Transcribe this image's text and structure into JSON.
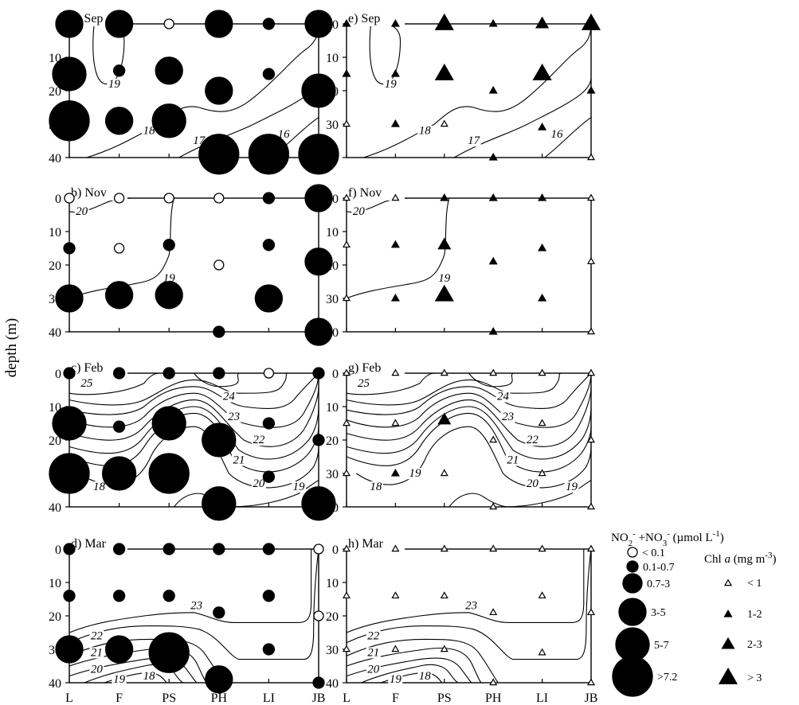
{
  "figure": {
    "ylabel": "depth (m)",
    "stations": [
      "L",
      "F",
      "PS",
      "PH",
      "LI",
      "JB"
    ],
    "depth_ticks": [
      "0",
      "10",
      "20",
      "30",
      "40"
    ]
  },
  "chart_data": {
    "type": "scatter",
    "x_categories": [
      "L",
      "F",
      "PS",
      "PH",
      "LI",
      "JB"
    ],
    "y_axis": {
      "label": "depth (m)",
      "ylim": [
        0,
        40
      ],
      "ticks": [
        0,
        10,
        20,
        30,
        40
      ],
      "inverted": true
    },
    "legend_nutrient": {
      "title": "NO2- +NO3- (µmol L-1)",
      "classes": [
        "< 0.1",
        "0.1-0.7",
        "0.7-3",
        "3-5",
        "5-7",
        ">7.2"
      ]
    },
    "legend_chla": {
      "title": "Chl a (mg m-3)",
      "classes": [
        "< 1",
        "1-2",
        "2-3",
        "> 3"
      ]
    },
    "panels": [
      {
        "id": "a",
        "title": "a) Sep",
        "variable": "nutrient",
        "points": [
          {
            "x": "L",
            "depth": 0,
            "class": 3
          },
          {
            "x": "F",
            "depth": 0,
            "class": 3
          },
          {
            "x": "PS",
            "depth": 0,
            "class": 0
          },
          {
            "x": "PH",
            "depth": 0,
            "class": 3
          },
          {
            "x": "LI",
            "depth": 0,
            "class": 1
          },
          {
            "x": "JB",
            "depth": 0,
            "class": 3
          },
          {
            "x": "L",
            "depth": 15,
            "class": 4
          },
          {
            "x": "F",
            "depth": 14,
            "class": 1
          },
          {
            "x": "PS",
            "depth": 14,
            "class": 3
          },
          {
            "x": "LI",
            "depth": 15,
            "class": 1
          },
          {
            "x": "PH",
            "depth": 20,
            "class": 3
          },
          {
            "x": "JB",
            "depth": 20,
            "class": 4
          },
          {
            "x": "L",
            "depth": 29,
            "class": 5
          },
          {
            "x": "F",
            "depth": 29,
            "class": 3
          },
          {
            "x": "PS",
            "depth": 29,
            "class": 4
          },
          {
            "x": "PH",
            "depth": 39,
            "class": 5
          },
          {
            "x": "LI",
            "depth": 39,
            "class": 5
          },
          {
            "x": "JB",
            "depth": 39,
            "class": 5
          }
        ],
        "contour_labels": [
          {
            "text": "19",
            "x": 0.9,
            "y": 19
          },
          {
            "text": "18",
            "x": 1.6,
            "y": 33
          },
          {
            "text": "17",
            "x": 2.6,
            "y": 36
          },
          {
            "text": "16",
            "x": 4.3,
            "y": 34
          }
        ]
      },
      {
        "id": "b",
        "title": "b) Nov",
        "variable": "nutrient",
        "points": [
          {
            "x": "L",
            "depth": 0,
            "class": 0
          },
          {
            "x": "F",
            "depth": 0,
            "class": 0
          },
          {
            "x": "PS",
            "depth": 0,
            "class": 0
          },
          {
            "x": "PH",
            "depth": 0,
            "class": 0
          },
          {
            "x": "LI",
            "depth": 0,
            "class": 1
          },
          {
            "x": "JB",
            "depth": 0,
            "class": 3
          },
          {
            "x": "L",
            "depth": 15,
            "class": 1
          },
          {
            "x": "F",
            "depth": 15,
            "class": 0
          },
          {
            "x": "PS",
            "depth": 14,
            "class": 1
          },
          {
            "x": "LI",
            "depth": 14,
            "class": 1
          },
          {
            "x": "PH",
            "depth": 20,
            "class": 0
          },
          {
            "x": "JB",
            "depth": 19,
            "class": 3
          },
          {
            "x": "L",
            "depth": 30,
            "class": 3
          },
          {
            "x": "F",
            "depth": 29,
            "class": 3
          },
          {
            "x": "PS",
            "depth": 29,
            "class": 3
          },
          {
            "x": "LI",
            "depth": 30,
            "class": 3
          },
          {
            "x": "PH",
            "depth": 40,
            "class": 1
          },
          {
            "x": "JB",
            "depth": 40,
            "class": 3
          }
        ],
        "contour_labels": [
          {
            "text": "20",
            "x": 0.25,
            "y": 5
          },
          {
            "text": "19",
            "x": 2.0,
            "y": 25
          }
        ]
      },
      {
        "id": "c",
        "title": "c) Feb",
        "variable": "nutrient",
        "points": [
          {
            "x": "L",
            "depth": 0,
            "class": 1
          },
          {
            "x": "F",
            "depth": 0,
            "class": 1
          },
          {
            "x": "PS",
            "depth": 0,
            "class": 1
          },
          {
            "x": "PH",
            "depth": 0,
            "class": 1
          },
          {
            "x": "LI",
            "depth": 0,
            "class": 0
          },
          {
            "x": "JB",
            "depth": 0,
            "class": 1
          },
          {
            "x": "L",
            "depth": 15,
            "class": 4
          },
          {
            "x": "F",
            "depth": 16,
            "class": 1
          },
          {
            "x": "PS",
            "depth": 15,
            "class": 4
          },
          {
            "x": "LI",
            "depth": 15,
            "class": 1
          },
          {
            "x": "PH",
            "depth": 20,
            "class": 4
          },
          {
            "x": "JB",
            "depth": 20,
            "class": 1
          },
          {
            "x": "L",
            "depth": 30,
            "class": 5
          },
          {
            "x": "F",
            "depth": 30,
            "class": 4
          },
          {
            "x": "PS",
            "depth": 30,
            "class": 5
          },
          {
            "x": "LI",
            "depth": 31,
            "class": 1
          },
          {
            "x": "PH",
            "depth": 39,
            "class": 4
          },
          {
            "x": "JB",
            "depth": 39,
            "class": 4
          }
        ],
        "contour_labels": [
          {
            "text": "25",
            "x": 0.35,
            "y": 4
          },
          {
            "text": "24",
            "x": 3.2,
            "y": 8
          },
          {
            "text": "23",
            "x": 3.3,
            "y": 14
          },
          {
            "text": "22",
            "x": 3.8,
            "y": 21
          },
          {
            "text": "21",
            "x": 3.4,
            "y": 27
          },
          {
            "text": "20",
            "x": 3.8,
            "y": 34
          },
          {
            "text": "19",
            "x": 4.6,
            "y": 35
          },
          {
            "text": "18",
            "x": 0.6,
            "y": 35
          },
          {
            "text": "30",
            "x": -0.15,
            "y": 30
          }
        ]
      },
      {
        "id": "d",
        "title": "d) Mar",
        "variable": "nutrient",
        "points": [
          {
            "x": "L",
            "depth": 0,
            "class": 1
          },
          {
            "x": "F",
            "depth": 0,
            "class": 1
          },
          {
            "x": "PS",
            "depth": 0,
            "class": 1
          },
          {
            "x": "PH",
            "depth": 0,
            "class": 1
          },
          {
            "x": "LI",
            "depth": 0,
            "class": 1
          },
          {
            "x": "JB",
            "depth": 0,
            "class": 0
          },
          {
            "x": "L",
            "depth": 14,
            "class": 1
          },
          {
            "x": "F",
            "depth": 14,
            "class": 1
          },
          {
            "x": "PS",
            "depth": 14,
            "class": 1
          },
          {
            "x": "LI",
            "depth": 14,
            "class": 1
          },
          {
            "x": "PH",
            "depth": 19,
            "class": 1
          },
          {
            "x": "JB",
            "depth": 20,
            "class": 0
          },
          {
            "x": "L",
            "depth": 30,
            "class": 3
          },
          {
            "x": "F",
            "depth": 30,
            "class": 3
          },
          {
            "x": "PS",
            "depth": 31,
            "class": 5
          },
          {
            "x": "LI",
            "depth": 30,
            "class": 1
          },
          {
            "x": "PH",
            "depth": 39,
            "class": 3
          },
          {
            "x": "JB",
            "depth": 40,
            "class": 1
          }
        ],
        "contour_labels": [
          {
            "text": "23",
            "x": 2.55,
            "y": 18
          },
          {
            "text": "22",
            "x": 0.55,
            "y": 27
          },
          {
            "text": "21",
            "x": 0.55,
            "y": 32
          },
          {
            "text": "20",
            "x": 0.55,
            "y": 37
          },
          {
            "text": "19",
            "x": 1.0,
            "y": 40
          },
          {
            "text": "18",
            "x": 1.6,
            "y": 39
          }
        ]
      },
      {
        "id": "e",
        "title": "e) Sep",
        "variable": "chla",
        "points": [
          {
            "x": "L",
            "depth": 0,
            "class": 1
          },
          {
            "x": "F",
            "depth": 0,
            "class": 1
          },
          {
            "x": "PS",
            "depth": 0,
            "class": 3
          },
          {
            "x": "PH",
            "depth": 0,
            "class": 1
          },
          {
            "x": "LI",
            "depth": 0,
            "class": 2
          },
          {
            "x": "JB",
            "depth": 0,
            "class": 3
          },
          {
            "x": "L",
            "depth": 15,
            "class": 1
          },
          {
            "x": "F",
            "depth": 15,
            "class": 1
          },
          {
            "x": "PS",
            "depth": 15,
            "class": 3
          },
          {
            "x": "LI",
            "depth": 15,
            "class": 3
          },
          {
            "x": "PH",
            "depth": 20,
            "class": 1
          },
          {
            "x": "JB",
            "depth": 20,
            "class": 1
          },
          {
            "x": "L",
            "depth": 30,
            "class": 0
          },
          {
            "x": "F",
            "depth": 30,
            "class": 1
          },
          {
            "x": "PS",
            "depth": 30,
            "class": 0
          },
          {
            "x": "LI",
            "depth": 31,
            "class": 1
          },
          {
            "x": "PH",
            "depth": 40,
            "class": 1
          },
          {
            "x": "JB",
            "depth": 40,
            "class": 0
          }
        ],
        "contour_labels": [
          {
            "text": "19",
            "x": 0.9,
            "y": 19
          },
          {
            "text": "18",
            "x": 1.6,
            "y": 33
          },
          {
            "text": "17",
            "x": 2.6,
            "y": 36
          },
          {
            "text": "16",
            "x": 4.3,
            "y": 34
          }
        ]
      },
      {
        "id": "f",
        "title": "f) Nov",
        "variable": "chla",
        "points": [
          {
            "x": "L",
            "depth": 0,
            "class": 0
          },
          {
            "x": "F",
            "depth": 0,
            "class": 0
          },
          {
            "x": "PS",
            "depth": 0,
            "class": 1
          },
          {
            "x": "PH",
            "depth": 0,
            "class": 1
          },
          {
            "x": "LI",
            "depth": 0,
            "class": 1
          },
          {
            "x": "JB",
            "depth": 0,
            "class": 0
          },
          {
            "x": "L",
            "depth": 14,
            "class": 0
          },
          {
            "x": "F",
            "depth": 14,
            "class": 1
          },
          {
            "x": "PS",
            "depth": 14,
            "class": 2
          },
          {
            "x": "LI",
            "depth": 15,
            "class": 1
          },
          {
            "x": "PH",
            "depth": 19,
            "class": 1
          },
          {
            "x": "JB",
            "depth": 19,
            "class": 0
          },
          {
            "x": "L",
            "depth": 30,
            "class": 0
          },
          {
            "x": "F",
            "depth": 30,
            "class": 1
          },
          {
            "x": "PS",
            "depth": 29,
            "class": 3
          },
          {
            "x": "LI",
            "depth": 30,
            "class": 1
          },
          {
            "x": "PH",
            "depth": 40,
            "class": 1
          },
          {
            "x": "JB",
            "depth": 40,
            "class": 0
          }
        ],
        "contour_labels": [
          {
            "text": "20",
            "x": 0.25,
            "y": 5
          },
          {
            "text": "19",
            "x": 2.0,
            "y": 25
          }
        ]
      },
      {
        "id": "g",
        "title": "g) Feb",
        "variable": "chla",
        "points": [
          {
            "x": "L",
            "depth": 0,
            "class": 0
          },
          {
            "x": "F",
            "depth": 0,
            "class": 0
          },
          {
            "x": "PS",
            "depth": 0,
            "class": 0
          },
          {
            "x": "PH",
            "depth": 0,
            "class": 0
          },
          {
            "x": "LI",
            "depth": 0,
            "class": 0
          },
          {
            "x": "JB",
            "depth": 0,
            "class": 0
          },
          {
            "x": "L",
            "depth": 15,
            "class": 0
          },
          {
            "x": "F",
            "depth": 15,
            "class": 0
          },
          {
            "x": "PS",
            "depth": 14,
            "class": 2
          },
          {
            "x": "LI",
            "depth": 15,
            "class": 0
          },
          {
            "x": "PH",
            "depth": 20,
            "class": 0
          },
          {
            "x": "JB",
            "depth": 20,
            "class": 0
          },
          {
            "x": "L",
            "depth": 30,
            "class": 0
          },
          {
            "x": "F",
            "depth": 30,
            "class": 1
          },
          {
            "x": "PS",
            "depth": 30,
            "class": 0
          },
          {
            "x": "LI",
            "depth": 30,
            "class": 0
          },
          {
            "x": "PH",
            "depth": 40,
            "class": 0
          },
          {
            "x": "JB",
            "depth": 40,
            "class": 0
          }
        ],
        "contour_labels": [
          {
            "text": "25",
            "x": 0.35,
            "y": 4
          },
          {
            "text": "24",
            "x": 3.2,
            "y": 8
          },
          {
            "text": "23",
            "x": 3.3,
            "y": 14
          },
          {
            "text": "22",
            "x": 3.8,
            "y": 21
          },
          {
            "text": "21",
            "x": 3.4,
            "y": 27
          },
          {
            "text": "20",
            "x": 3.8,
            "y": 34
          },
          {
            "text": "19",
            "x": 4.6,
            "y": 35
          },
          {
            "text": "18",
            "x": 0.6,
            "y": 35
          },
          {
            "text": "19",
            "x": 1.4,
            "y": 31
          }
        ]
      },
      {
        "id": "h",
        "title": "h) Mar",
        "variable": "chla",
        "points": [
          {
            "x": "L",
            "depth": 0,
            "class": 0
          },
          {
            "x": "F",
            "depth": 0,
            "class": 0
          },
          {
            "x": "PS",
            "depth": 0,
            "class": 0
          },
          {
            "x": "PH",
            "depth": 0,
            "class": 0
          },
          {
            "x": "LI",
            "depth": 0,
            "class": 0
          },
          {
            "x": "JB",
            "depth": 0,
            "class": 0
          },
          {
            "x": "L",
            "depth": 14,
            "class": 0
          },
          {
            "x": "F",
            "depth": 14,
            "class": 0
          },
          {
            "x": "PS",
            "depth": 14,
            "class": 0
          },
          {
            "x": "LI",
            "depth": 14,
            "class": 0
          },
          {
            "x": "PH",
            "depth": 19,
            "class": 0
          },
          {
            "x": "JB",
            "depth": 19,
            "class": 0
          },
          {
            "x": "L",
            "depth": 30,
            "class": 0
          },
          {
            "x": "F",
            "depth": 30,
            "class": 0
          },
          {
            "x": "PS",
            "depth": 30,
            "class": 0
          },
          {
            "x": "LI",
            "depth": 31,
            "class": 0
          },
          {
            "x": "PH",
            "depth": 40,
            "class": 0
          },
          {
            "x": "JB",
            "depth": 40,
            "class": 0
          }
        ],
        "contour_labels": [
          {
            "text": "23",
            "x": 2.55,
            "y": 18
          },
          {
            "text": "22",
            "x": 0.55,
            "y": 27
          },
          {
            "text": "21",
            "x": 0.55,
            "y": 32
          },
          {
            "text": "20",
            "x": 0.55,
            "y": 37
          },
          {
            "text": "19",
            "x": 1.0,
            "y": 40
          },
          {
            "text": "18",
            "x": 1.6,
            "y": 39
          }
        ]
      }
    ]
  }
}
